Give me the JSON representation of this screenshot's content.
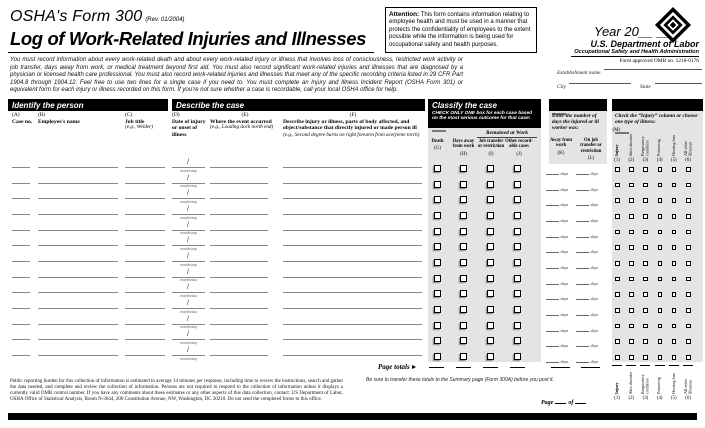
{
  "colors": {
    "bar": "#000000",
    "panel": "#e4e4e4",
    "ink": "#000000"
  },
  "header": {
    "form_name": "OSHA's Form 300",
    "form_rev": "(Rev. 01/2004)",
    "title": "Log of Work-Related Injuries and Illnesses",
    "attention": {
      "label": "Attention:",
      "text": " This form contains information relating to employee health and must be used in a manner that protects the confidentiality of employees to the extent possible while the information is being used for occupational safety and health purposes."
    },
    "year": "Year 20__ __",
    "agency": "U.S. Department of Labor",
    "agency_sub": "Occupational Safety and Health Administration",
    "omb": "Form approved OMB no. 1218-0176",
    "establishment_label": "Establishment name",
    "city_label": "City",
    "state_label": "State"
  },
  "intro": "You must record information about every work-related death and about every work-related injury or illness that involves loss of consciousness, restricted work activity or job transfer, days away from work, or medical treatment beyond first aid. You must also record significant work-related injuries and illnesses that are diagnosed by a physician or licensed health care professional. You must also record work-related injuries and illnesses that meet any of the specific recording criteria listed in 29 CFR Part 1904.8 through 1904.12. Feel free to use two lines for a single case if you need to. You must complete an Injury and Illness Incident Report (OSHA Form 301) or equivalent form for each injury or illness recorded on this form. If you're not sure whether a case is recordable, call your local OSHA office for help.",
  "sections": {
    "identify": "Identify the person",
    "describe": "Describe the case",
    "classify": "Classify the case",
    "classify_sub": "CHECK ONLY ONE box for each case based on the most serious outcome for that case:",
    "remained": "Remained at Work",
    "days_header": "Enter the number of days the injured or ill worker was:",
    "illness_header": "Check the “Injury” column or choose one type of illness:"
  },
  "columns": {
    "a": {
      "key": "(A)",
      "label": "Case no."
    },
    "b": {
      "key": "(B)",
      "label": "Employee's name"
    },
    "c": {
      "key": "(C)",
      "label": "Job title",
      "example": "(e.g., Welder)"
    },
    "d": {
      "key": "(D)",
      "label": "Date of injury or onset of illness"
    },
    "e": {
      "key": "(E)",
      "label": "Where the event occurred",
      "example": "(e.g., Loading dock north end)"
    },
    "f": {
      "key": "(F)",
      "label": "Describe injury or illness, parts of body affected, and object/substance that directly injured or made person ill",
      "example": "(e.g., Second degree burns on right forearm from acetylene torch)"
    },
    "g": {
      "key": "(G)",
      "label": "Death"
    },
    "h": {
      "key": "(H)",
      "label": "Days away from work"
    },
    "i": {
      "key": "(I)",
      "label": "Job transfer or restriction"
    },
    "j": {
      "key": "(J)",
      "label": "Other record-able cases"
    },
    "k": {
      "key": "(K)",
      "label": "Away from work"
    },
    "l": {
      "key": "(L)",
      "label": "On job transfer or restriction"
    },
    "m_key": "(M)",
    "illness_types": [
      {
        "num": "(1)",
        "label": "Injury"
      },
      {
        "num": "(2)",
        "label": "Skin disorder"
      },
      {
        "num": "(3)",
        "label": "Respiratory condition"
      },
      {
        "num": "(4)",
        "label": "Poisoning"
      },
      {
        "num": "(5)",
        "label": "Hearing loss"
      },
      {
        "num": "(6)",
        "label": "All other illnesses"
      }
    ]
  },
  "table": {
    "row_count": 13,
    "date_hint": "month/day",
    "days_unit": "days"
  },
  "footer": {
    "page_totals": "Page totals",
    "transfer_note": "Be sure to transfer these totals to the Summary page (Form 300A) before you post it.",
    "page_word": "Page",
    "of_word": "of",
    "burden_text": "Public reporting burden for this collection of information is estimated to average 14 minutes per response, including time to review the instructions, search and gather the data needed, and complete and review the collection of information. Persons are not required to respond to the collection of information unless it displays a currently valid OMB control number. If you have any comments about these estimates or any other aspects of this data collection, contact: US Department of Labor, OSHA Office of Statistical Analysis, Room N-3644, 200 Constitution Avenue, NW, Washington, DC 20210. Do not send the completed forms to this office."
  }
}
